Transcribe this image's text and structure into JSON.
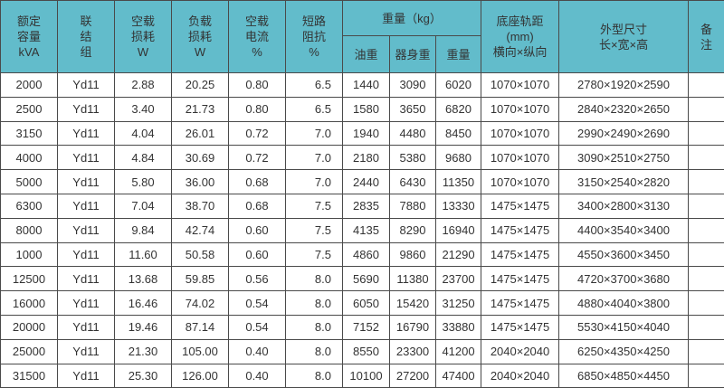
{
  "header_color": "#62bccb",
  "headers": {
    "capacity": [
      "额定",
      "容量",
      "kVA"
    ],
    "connection": [
      "联",
      "结",
      "组"
    ],
    "no_load_loss": [
      "空载",
      "损耗",
      "W"
    ],
    "load_loss": [
      "负载",
      "损耗",
      "W"
    ],
    "no_load_current": [
      "空载",
      "电流",
      "%"
    ],
    "impedance": [
      "短路",
      "阻抗",
      "%"
    ],
    "weight_group": "重量（kg）",
    "oil_weight": "油重",
    "body_weight": "器身重",
    "total_weight": "重量",
    "gauge": [
      "底座轨距",
      "(mm)",
      "横向×纵向"
    ],
    "dimensions": [
      "外型尺寸",
      "长×宽×高"
    ],
    "remarks": [
      "备",
      "注"
    ]
  },
  "rows": [
    [
      "2000",
      "Yd11",
      "2.88",
      "20.25",
      "0.80",
      "6.5",
      "1440",
      "3090",
      "6020",
      "1070×1070",
      "2780×1920×2590",
      ""
    ],
    [
      "2500",
      "Yd11",
      "3.40",
      "21.73",
      "0.80",
      "6.5",
      "1580",
      "3650",
      "6820",
      "1070×1070",
      "2840×2320×2650",
      ""
    ],
    [
      "3150",
      "Yd11",
      "4.04",
      "26.01",
      "0.72",
      "7.0",
      "1940",
      "4480",
      "8450",
      "1070×1070",
      "2990×2490×2690",
      ""
    ],
    [
      "4000",
      "Yd11",
      "4.84",
      "30.69",
      "0.72",
      "7.0",
      "2180",
      "5380",
      "9680",
      "1070×1070",
      "3090×2510×2750",
      ""
    ],
    [
      "5000",
      "Yd11",
      "5.80",
      "36.00",
      "0.68",
      "7.0",
      "2440",
      "6430",
      "11350",
      "1070×1070",
      "3150×2540×2820",
      ""
    ],
    [
      "6300",
      "Yd11",
      "7.04",
      "38.70",
      "0.68",
      "7.5",
      "2835",
      "7880",
      "13330",
      "1475×1475",
      "3400×2800×3130",
      ""
    ],
    [
      "8000",
      "Yd11",
      "9.84",
      "42.74",
      "0.60",
      "7.5",
      "4135",
      "8290",
      "16940",
      "1475×1475",
      "4400×3540×3400",
      ""
    ],
    [
      "1000",
      "Yd11",
      "11.60",
      "50.58",
      "0.60",
      "7.5",
      "4860",
      "9860",
      "21290",
      "1475×1475",
      "4550×3600×3450",
      ""
    ],
    [
      "12500",
      "Yd11",
      "13.68",
      "59.85",
      "0.56",
      "8.0",
      "5690",
      "11380",
      "23700",
      "1475×1475",
      "4720×3700×3680",
      ""
    ],
    [
      "16000",
      "Yd11",
      "16.46",
      "74.02",
      "0.54",
      "8.0",
      "6050",
      "15420",
      "31250",
      "1475×1475",
      "4880×4040×3800",
      ""
    ],
    [
      "20000",
      "Yd11",
      "19.46",
      "87.14",
      "0.54",
      "8.0",
      "7152",
      "16790",
      "33880",
      "1475×1475",
      "5530×4150×4040",
      ""
    ],
    [
      "25000",
      "Yd11",
      "21.30",
      "105.00",
      "0.40",
      "8.0",
      "8550",
      "23300",
      "41200",
      "2040×2040",
      "6250×4350×4250",
      ""
    ],
    [
      "31500",
      "Yd11",
      "25.30",
      "126.00",
      "0.40",
      "8.0",
      "10100",
      "27200",
      "47400",
      "2040×2040",
      "6850×4850×4450",
      ""
    ]
  ]
}
